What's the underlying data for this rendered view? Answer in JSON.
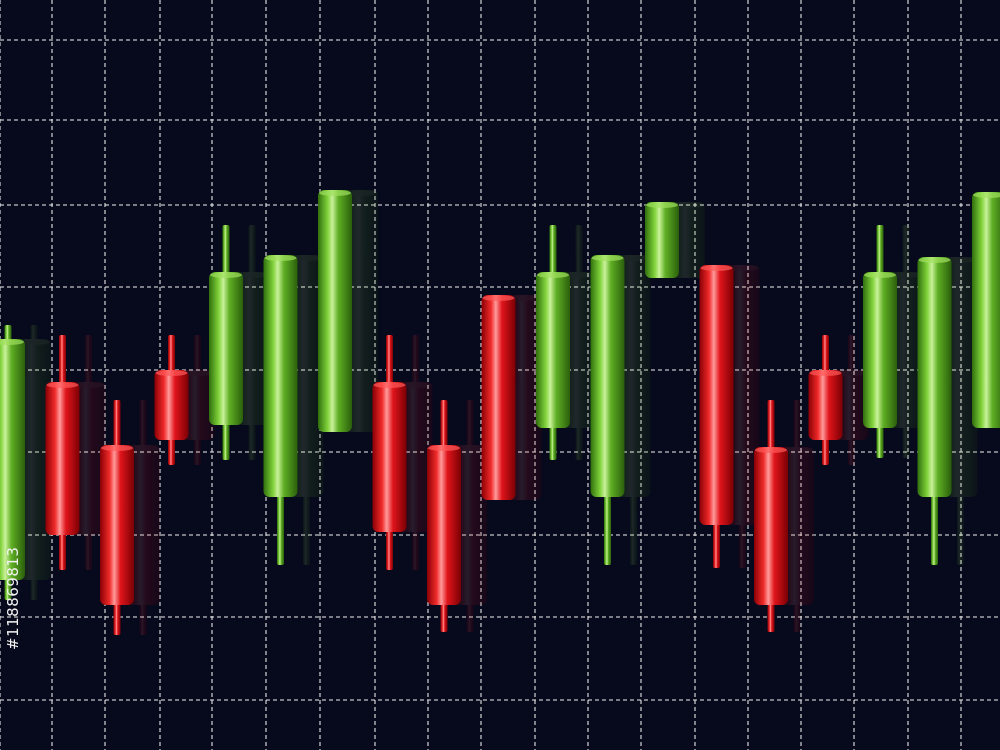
{
  "watermark": {
    "stock_id": "#118869813"
  },
  "colors": {
    "background": "#07091c",
    "grid": "#e6e6e6",
    "up": "#5fae24",
    "down": "#e0141b"
  },
  "chart_data": {
    "type": "candlestick",
    "title": "",
    "xlabel": "",
    "ylabel": "",
    "grid": true,
    "grid_style": "dashed",
    "axes_visible": false,
    "ylim": [
      0,
      750
    ],
    "x": [
      1,
      2,
      3,
      4,
      5,
      6,
      7,
      8,
      9,
      10,
      11,
      12,
      13,
      14,
      15,
      16,
      17,
      18,
      19
    ],
    "series": [
      {
        "candles": [
          {
            "x": 1,
            "direction": "up",
            "open": 170,
            "close": 411,
            "high": 425,
            "low": 150
          },
          {
            "x": 2,
            "direction": "down",
            "open": 368,
            "close": 215,
            "high": 415,
            "low": 180
          },
          {
            "x": 3,
            "direction": "down",
            "open": 305,
            "close": 145,
            "high": 350,
            "low": 115
          },
          {
            "x": 4,
            "direction": "down",
            "open": 380,
            "close": 310,
            "high": 415,
            "low": 285
          },
          {
            "x": 5,
            "direction": "up",
            "open": 325,
            "close": 478,
            "high": 525,
            "low": 290
          },
          {
            "x": 6,
            "direction": "up",
            "open": 253,
            "close": 495,
            "high": 495,
            "low": 185
          },
          {
            "x": 7,
            "direction": "up",
            "open": 318,
            "close": 560,
            "high": 560,
            "low": 318
          },
          {
            "x": 8,
            "direction": "down",
            "open": 368,
            "close": 218,
            "high": 415,
            "low": 180
          },
          {
            "x": 9,
            "direction": "down",
            "open": 305,
            "close": 145,
            "high": 350,
            "low": 118
          },
          {
            "x": 10,
            "direction": "down",
            "open": 455,
            "close": 250,
            "high": 455,
            "low": 250
          },
          {
            "x": 11,
            "direction": "up",
            "open": 322,
            "close": 478,
            "high": 525,
            "low": 290
          },
          {
            "x": 12,
            "direction": "up",
            "open": 253,
            "close": 495,
            "high": 495,
            "low": 185
          },
          {
            "x": 13,
            "direction": "up",
            "open": 472,
            "close": 548,
            "high": 548,
            "low": 472
          },
          {
            "x": 14,
            "direction": "down",
            "open": 485,
            "close": 225,
            "high": 485,
            "low": 182
          },
          {
            "x": 15,
            "direction": "down",
            "open": 303,
            "close": 145,
            "high": 350,
            "low": 118
          },
          {
            "x": 16,
            "direction": "down",
            "open": 380,
            "close": 310,
            "high": 415,
            "low": 285
          },
          {
            "x": 17,
            "direction": "up",
            "open": 322,
            "close": 478,
            "high": 525,
            "low": 292
          },
          {
            "x": 18,
            "direction": "up",
            "open": 253,
            "close": 493,
            "high": 493,
            "low": 185
          },
          {
            "x": 19,
            "direction": "up",
            "open": 322,
            "close": 558,
            "high": 558,
            "low": 322
          }
        ]
      }
    ]
  }
}
